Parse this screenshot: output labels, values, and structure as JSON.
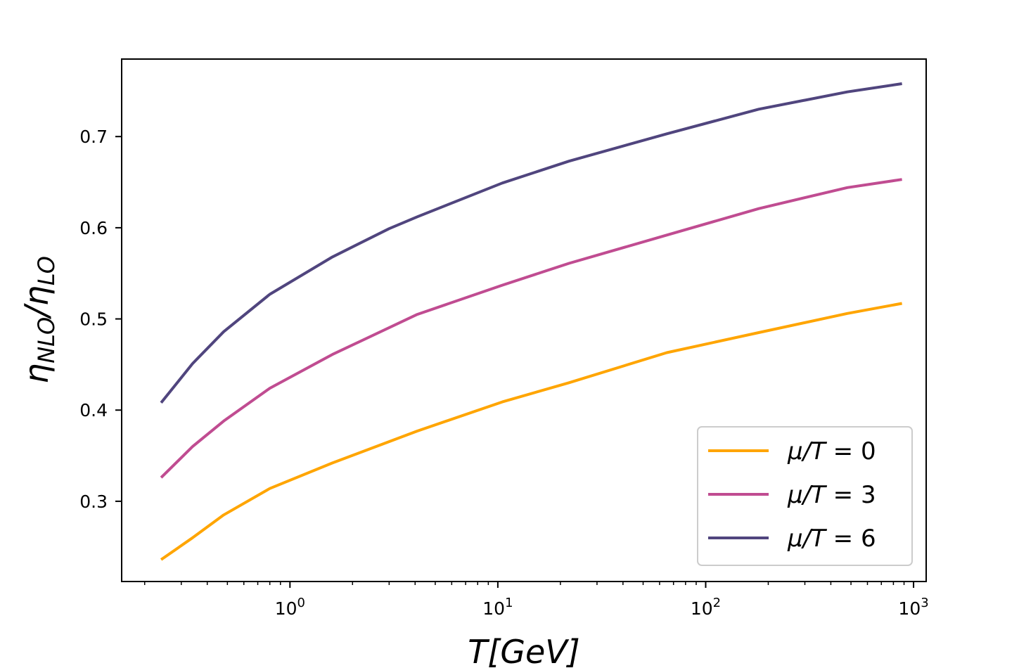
{
  "chart_data": {
    "type": "line",
    "title": "",
    "xlabel": "T[GeV]",
    "ylabel": "ηNLO/ηLO",
    "ylabel_main": "η",
    "ylabel_sub1": "NLO",
    "ylabel_slash": "/",
    "ylabel_sub2": "LO",
    "xscale": "log",
    "xlim": [
      0.155,
      1150
    ],
    "ylim": [
      0.212,
      0.785
    ],
    "grid": false,
    "legend_position": "bottom-right",
    "x_ticks": [
      {
        "value": 1,
        "base": "10",
        "exp": "0"
      },
      {
        "value": 10,
        "base": "10",
        "exp": "1"
      },
      {
        "value": 100,
        "base": "10",
        "exp": "2"
      },
      {
        "value": 1000,
        "base": "10",
        "exp": "3"
      }
    ],
    "y_ticks": [
      {
        "value": 0.3,
        "label": "0.3"
      },
      {
        "value": 0.4,
        "label": "0.4"
      },
      {
        "value": 0.5,
        "label": "0.5"
      },
      {
        "value": 0.6,
        "label": "0.6"
      },
      {
        "value": 0.7,
        "label": "0.7"
      }
    ],
    "series": [
      {
        "name": "μ/T = 0",
        "legend_prefix": "μ/T",
        "legend_value": "= 0",
        "color": "#ffa500",
        "x": [
          0.24,
          0.34,
          0.48,
          0.8,
          1.6,
          4.1,
          10.5,
          22,
          65,
          180,
          480,
          880
        ],
        "y": [
          0.236,
          0.26,
          0.285,
          0.314,
          0.342,
          0.377,
          0.409,
          0.43,
          0.463,
          0.485,
          0.506,
          0.517
        ]
      },
      {
        "name": "μ/T = 3",
        "legend_prefix": "μ/T",
        "legend_value": "= 3",
        "color": "#c04c91",
        "x": [
          0.24,
          0.34,
          0.48,
          0.8,
          1.6,
          4.1,
          10.5,
          22,
          65,
          180,
          480,
          880
        ],
        "y": [
          0.326,
          0.36,
          0.388,
          0.424,
          0.461,
          0.505,
          0.537,
          0.561,
          0.592,
          0.621,
          0.644,
          0.653
        ]
      },
      {
        "name": "μ/T = 6",
        "legend_prefix": "μ/T",
        "legend_value": "= 6",
        "color": "#50457e",
        "x": [
          0.24,
          0.34,
          0.48,
          0.8,
          1.6,
          3.0,
          4.1,
          10.5,
          22,
          65,
          180,
          480,
          880
        ],
        "y": [
          0.408,
          0.451,
          0.486,
          0.527,
          0.568,
          0.599,
          0.612,
          0.649,
          0.673,
          0.703,
          0.73,
          0.749,
          0.758
        ]
      }
    ]
  }
}
